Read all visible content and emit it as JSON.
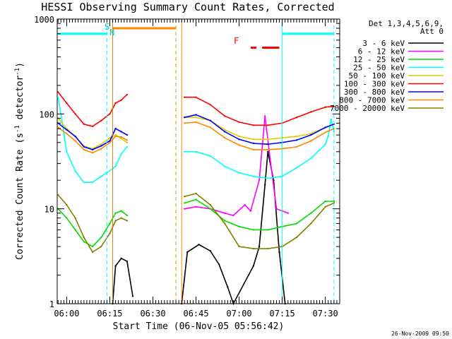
{
  "chart_data": {
    "type": "line",
    "title": "HESSI Observing Summary Count Rates, Corrected",
    "xlabel": "Start Time (06-Nov-05 05:56:42)",
    "ylabel_main": "Corrected Count Rate (s",
    "ylabel_sup1": "-1",
    "ylabel_mid": " detector",
    "ylabel_sup2": "-1",
    "ylabel_end": ")",
    "yscale": "log",
    "ylim": [
      1,
      1000
    ],
    "xlim": [
      "05:56:42",
      "07:35:00"
    ],
    "xticks": [
      "06:00",
      "06:15",
      "06:30",
      "06:45",
      "07:00",
      "07:15",
      "07:30"
    ],
    "yticks": [
      "1",
      "10",
      "100",
      "1000"
    ],
    "grid": false,
    "legend_position": "right",
    "legend_header": [
      "Det 1,3,4,5,6,9,",
      "Att 0"
    ],
    "timestamp": "26-Nov-2009 09:50",
    "flags": {
      "saa_label": "S",
      "night_label": "N",
      "flare_label": "F"
    },
    "series": [
      {
        "name": "3 - 6 keV",
        "color": "#000000",
        "points": [
          [
            "06:16",
            1
          ],
          [
            "06:17",
            2.5
          ],
          [
            "06:19",
            3
          ],
          [
            "06:21",
            2.8
          ],
          [
            "06:23",
            1.2
          ],
          [
            "06:40",
            1
          ],
          [
            "06:42",
            3.5
          ],
          [
            "06:46",
            4.2
          ],
          [
            "06:50",
            3.6
          ],
          [
            "06:53",
            2.6
          ],
          [
            "06:56",
            1.5
          ],
          [
            "06:58",
            1
          ],
          [
            "07:05",
            2.5
          ],
          [
            "07:07",
            4
          ],
          [
            "07:09",
            18
          ],
          [
            "07:10",
            40
          ],
          [
            "07:12",
            20
          ],
          [
            "07:14",
            3.5
          ],
          [
            "07:16",
            1
          ]
        ]
      },
      {
        "name": "6 - 12 keV",
        "color": "#ff00ff",
        "points": [
          [
            "06:41",
            10
          ],
          [
            "06:45",
            10.5
          ],
          [
            "06:50",
            10
          ],
          [
            "06:55",
            9
          ],
          [
            "06:58",
            8.5
          ],
          [
            "07:02",
            11
          ],
          [
            "07:04",
            9.5
          ],
          [
            "07:07",
            20
          ],
          [
            "07:09",
            95
          ],
          [
            "07:11",
            30
          ],
          [
            "07:13",
            10
          ],
          [
            "07:17",
            9
          ]
        ]
      },
      {
        "name": "12 - 25 keV",
        "color": "#00dd00",
        "points": [
          [
            "05:57",
            10
          ],
          [
            "06:00",
            8
          ],
          [
            "06:03",
            6
          ],
          [
            "06:06",
            4.5
          ],
          [
            "06:09",
            4
          ],
          [
            "06:12",
            5
          ],
          [
            "06:15",
            7
          ],
          [
            "06:17",
            9
          ],
          [
            "06:19",
            9.5
          ],
          [
            "06:21",
            8.5
          ],
          [
            "06:41",
            11.5
          ],
          [
            "06:45",
            12.5
          ],
          [
            "06:50",
            10
          ],
          [
            "06:55",
            7.5
          ],
          [
            "07:00",
            6.5
          ],
          [
            "07:05",
            6
          ],
          [
            "07:10",
            6
          ],
          [
            "07:15",
            6.5
          ],
          [
            "07:20",
            7
          ],
          [
            "07:25",
            9
          ],
          [
            "07:30",
            12
          ],
          [
            "07:33",
            12
          ]
        ]
      },
      {
        "name": "25 - 50 keV",
        "color": "#00ffff",
        "points": [
          [
            "05:57",
            150
          ],
          [
            "05:58",
            100
          ],
          [
            "06:00",
            40
          ],
          [
            "06:03",
            25
          ],
          [
            "06:06",
            19
          ],
          [
            "06:09",
            19
          ],
          [
            "06:12",
            22
          ],
          [
            "06:14",
            24
          ],
          [
            "06:17",
            28
          ],
          [
            "06:19",
            38
          ],
          [
            "06:21",
            45
          ],
          [
            "06:41",
            40
          ],
          [
            "06:45",
            40
          ],
          [
            "06:50",
            36
          ],
          [
            "06:55",
            28
          ],
          [
            "07:00",
            24
          ],
          [
            "07:05",
            22
          ],
          [
            "07:10",
            21
          ],
          [
            "07:15",
            22
          ],
          [
            "07:20",
            27
          ],
          [
            "07:25",
            34
          ],
          [
            "07:30",
            48
          ],
          [
            "07:31",
            58
          ],
          [
            "07:32",
            88
          ],
          [
            "07:33",
            65
          ]
        ]
      },
      {
        "name": "50 - 100 keV",
        "color": "#ddcc00",
        "points": [
          [
            "05:57",
            90
          ],
          [
            "06:00",
            70
          ],
          [
            "06:03",
            58
          ],
          [
            "06:06",
            46
          ],
          [
            "06:09",
            43
          ],
          [
            "06:12",
            48
          ],
          [
            "06:15",
            56
          ],
          [
            "06:17",
            60
          ],
          [
            "06:19",
            55
          ],
          [
            "06:21",
            50
          ],
          [
            "06:41",
            92
          ],
          [
            "06:45",
            92
          ],
          [
            "06:50",
            85
          ],
          [
            "06:55",
            68
          ],
          [
            "07:00",
            58
          ],
          [
            "07:05",
            54
          ],
          [
            "07:10",
            54
          ],
          [
            "07:15",
            56
          ],
          [
            "07:20",
            58
          ],
          [
            "07:25",
            62
          ],
          [
            "07:30",
            72
          ],
          [
            "07:33",
            78
          ]
        ]
      },
      {
        "name": "100 - 300 keV",
        "color": "#ff0000",
        "points": [
          [
            "05:57",
            170
          ],
          [
            "06:00",
            130
          ],
          [
            "06:03",
            100
          ],
          [
            "06:06",
            78
          ],
          [
            "06:09",
            74
          ],
          [
            "06:12",
            85
          ],
          [
            "06:15",
            100
          ],
          [
            "06:17",
            130
          ],
          [
            "06:19",
            140
          ],
          [
            "06:21",
            160
          ],
          [
            "06:41",
            150
          ],
          [
            "06:45",
            150
          ],
          [
            "06:50",
            125
          ],
          [
            "06:55",
            95
          ],
          [
            "07:00",
            82
          ],
          [
            "07:05",
            76
          ],
          [
            "07:10",
            76
          ],
          [
            "07:15",
            80
          ],
          [
            "07:20",
            92
          ],
          [
            "07:25",
            105
          ],
          [
            "07:30",
            118
          ],
          [
            "07:33",
            120
          ]
        ]
      },
      {
        "name": "300 - 800 keV",
        "color": "#0000ff",
        "points": [
          [
            "05:57",
            80
          ],
          [
            "06:00",
            68
          ],
          [
            "06:03",
            58
          ],
          [
            "06:06",
            45
          ],
          [
            "06:09",
            42
          ],
          [
            "06:12",
            46
          ],
          [
            "06:15",
            52
          ],
          [
            "06:17",
            70
          ],
          [
            "06:19",
            65
          ],
          [
            "06:21",
            60
          ],
          [
            "06:41",
            92
          ],
          [
            "06:45",
            98
          ],
          [
            "06:50",
            85
          ],
          [
            "06:55",
            65
          ],
          [
            "07:00",
            54
          ],
          [
            "07:05",
            49
          ],
          [
            "07:10",
            48
          ],
          [
            "07:15",
            50
          ],
          [
            "07:20",
            53
          ],
          [
            "07:25",
            60
          ],
          [
            "07:30",
            72
          ],
          [
            "07:33",
            78
          ]
        ]
      },
      {
        "name": "800 - 7000 keV",
        "color": "#ff8800",
        "points": [
          [
            "05:57",
            72
          ],
          [
            "06:00",
            62
          ],
          [
            "06:03",
            52
          ],
          [
            "06:06",
            42
          ],
          [
            "06:09",
            39
          ],
          [
            "06:12",
            43
          ],
          [
            "06:15",
            50
          ],
          [
            "06:17",
            58
          ],
          [
            "06:19",
            57
          ],
          [
            "06:21",
            53
          ],
          [
            "06:41",
            80
          ],
          [
            "06:45",
            82
          ],
          [
            "06:50",
            72
          ],
          [
            "06:55",
            56
          ],
          [
            "07:00",
            47
          ],
          [
            "07:05",
            42
          ],
          [
            "07:10",
            42
          ],
          [
            "07:15",
            43
          ],
          [
            "07:20",
            45
          ],
          [
            "07:25",
            52
          ],
          [
            "07:30",
            64
          ],
          [
            "07:33",
            70
          ]
        ]
      },
      {
        "name": "7000 - 20000 keV",
        "color": "#808000",
        "points": [
          [
            "05:57",
            14
          ],
          [
            "06:00",
            11
          ],
          [
            "06:03",
            8
          ],
          [
            "06:06",
            5
          ],
          [
            "06:09",
            3.5
          ],
          [
            "06:12",
            4
          ],
          [
            "06:15",
            5.5
          ],
          [
            "06:17",
            7.5
          ],
          [
            "06:19",
            8
          ],
          [
            "06:21",
            7.5
          ],
          [
            "06:41",
            13.5
          ],
          [
            "06:45",
            14.5
          ],
          [
            "06:50",
            11
          ],
          [
            "06:55",
            7
          ],
          [
            "07:00",
            4
          ],
          [
            "07:05",
            3.8
          ],
          [
            "07:10",
            3.8
          ],
          [
            "07:15",
            4
          ],
          [
            "07:20",
            5
          ],
          [
            "07:25",
            7
          ],
          [
            "07:30",
            10.5
          ],
          [
            "07:33",
            11.5
          ]
        ]
      }
    ],
    "vertical_markers": [
      {
        "time": "06:14",
        "color": "#00ffff",
        "style": "dashed"
      },
      {
        "time": "06:16",
        "color": "#cc8800",
        "style": "solid"
      },
      {
        "time": "06:38",
        "color": "#ff8800",
        "style": "dashed"
      },
      {
        "time": "06:40",
        "color": "#ff8800",
        "style": "solid"
      },
      {
        "time": "07:15",
        "color": "#00ffff",
        "style": "solid"
      },
      {
        "time": "07:33",
        "color": "#00ffff",
        "style": "dashed"
      }
    ],
    "flag_bars": [
      {
        "label": "saa",
        "color": "#00ffff",
        "start": "05:57",
        "end": "06:14",
        "level": 700
      },
      {
        "label": "saa",
        "color": "#00ffff",
        "start": "07:15",
        "end": "07:33",
        "level": 700
      },
      {
        "label": "eclipse",
        "color": "#ff8800",
        "start": "06:16",
        "end": "06:38",
        "level": 800
      },
      {
        "label": "flare",
        "color": "#ff0000",
        "start": "07:04",
        "end": "07:06",
        "level": 500
      },
      {
        "label": "flare",
        "color": "#ff0000",
        "start": "07:08",
        "end": "07:14",
        "level": 500
      }
    ]
  }
}
